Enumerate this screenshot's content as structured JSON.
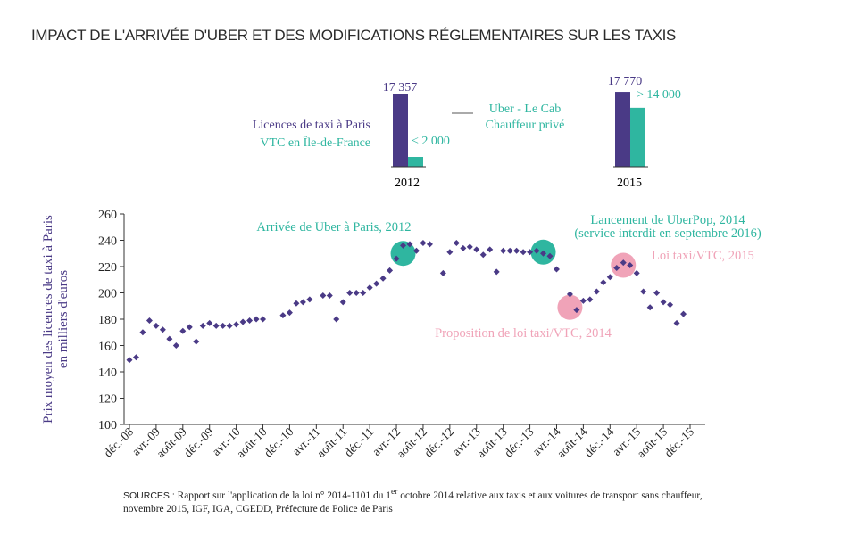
{
  "title": "IMPACT DE L'ARRIVÉE D'UBER ET DES MODIFICATIONS RÉGLEMENTAIRES SUR LES TAXIS",
  "colors": {
    "taxi": "#4a3a86",
    "vtc": "#2fb6a0",
    "law": "#f0a3b8",
    "axis": "#333333"
  },
  "inset": {
    "legend": {
      "taxi": "Licences de taxi à Paris",
      "vtc": "VTC en Île-de-France",
      "uber_line1": "Uber - Le Cab",
      "uber_line2": "Chauffeur privé"
    },
    "years": [
      {
        "year": "2012",
        "taxi": 17357,
        "vtc": 2000,
        "taxi_label": "17 357",
        "vtc_label": "< 2 000"
      },
      {
        "year": "2015",
        "taxi": 17770,
        "vtc": 14000,
        "taxi_label": "17 770",
        "vtc_label": "> 14 000"
      }
    ]
  },
  "chart_data": {
    "type": "scatter",
    "ylabel_line1": "Prix moyen des licences de taxi à Paris",
    "ylabel_line2": "en milliers d'euros",
    "ylim": [
      100,
      260
    ],
    "yticks": [
      100,
      120,
      140,
      160,
      180,
      200,
      220,
      240,
      260
    ],
    "xlim": [
      0,
      84
    ],
    "xticks": [
      {
        "i": 0,
        "label": "déc.-08"
      },
      {
        "i": 4,
        "label": "avr.-09"
      },
      {
        "i": 8,
        "label": "août-09"
      },
      {
        "i": 12,
        "label": "déc.-09"
      },
      {
        "i": 16,
        "label": "avr.-10"
      },
      {
        "i": 20,
        "label": "août-10"
      },
      {
        "i": 24,
        "label": "déc.-10"
      },
      {
        "i": 28,
        "label": "avr.-11"
      },
      {
        "i": 32,
        "label": "août-11"
      },
      {
        "i": 36,
        "label": "déc.-11"
      },
      {
        "i": 40,
        "label": "avr.-12"
      },
      {
        "i": 44,
        "label": "août-12"
      },
      {
        "i": 48,
        "label": "déc.-12"
      },
      {
        "i": 52,
        "label": "avr.-13"
      },
      {
        "i": 56,
        "label": "août-13"
      },
      {
        "i": 60,
        "label": "déc.-13"
      },
      {
        "i": 64,
        "label": "avr.-14"
      },
      {
        "i": 68,
        "label": "août-14"
      },
      {
        "i": 72,
        "label": "déc.-14"
      },
      {
        "i": 76,
        "label": "avr.-15"
      },
      {
        "i": 80,
        "label": "août-15"
      },
      {
        "i": 84,
        "label": "déc.-15"
      }
    ],
    "points": [
      [
        0,
        149
      ],
      [
        1,
        151
      ],
      [
        2,
        170
      ],
      [
        3,
        179
      ],
      [
        4,
        175
      ],
      [
        5,
        172
      ],
      [
        6,
        165
      ],
      [
        7,
        160
      ],
      [
        8,
        171
      ],
      [
        9,
        174
      ],
      [
        10,
        163
      ],
      [
        11,
        175
      ],
      [
        12,
        177
      ],
      [
        13,
        175
      ],
      [
        14,
        175
      ],
      [
        15,
        175
      ],
      [
        16,
        176
      ],
      [
        17,
        178
      ],
      [
        18,
        179
      ],
      [
        19,
        180
      ],
      [
        20,
        180
      ],
      [
        23,
        183
      ],
      [
        24,
        185
      ],
      [
        25,
        192
      ],
      [
        26,
        193
      ],
      [
        27,
        195
      ],
      [
        29,
        198
      ],
      [
        30,
        198
      ],
      [
        31,
        180
      ],
      [
        32,
        193
      ],
      [
        33,
        200
      ],
      [
        34,
        200
      ],
      [
        35,
        200
      ],
      [
        36,
        204
      ],
      [
        37,
        207
      ],
      [
        38,
        211
      ],
      [
        39,
        217
      ],
      [
        40,
        226
      ],
      [
        41,
        236
      ],
      [
        42,
        237
      ],
      [
        43,
        232
      ],
      [
        44,
        238
      ],
      [
        45,
        237
      ],
      [
        47,
        215
      ],
      [
        48,
        231
      ],
      [
        49,
        238
      ],
      [
        50,
        234
      ],
      [
        51,
        235
      ],
      [
        52,
        233
      ],
      [
        53,
        229
      ],
      [
        54,
        233
      ],
      [
        55,
        216
      ],
      [
        56,
        232
      ],
      [
        57,
        232
      ],
      [
        58,
        232
      ],
      [
        59,
        231
      ],
      [
        60,
        231
      ],
      [
        61,
        232
      ],
      [
        62,
        230
      ],
      [
        63,
        228
      ],
      [
        64,
        218
      ],
      [
        66,
        199
      ],
      [
        67,
        187
      ],
      [
        68,
        194
      ],
      [
        69,
        195
      ],
      [
        70,
        201
      ],
      [
        71,
        208
      ],
      [
        72,
        212
      ],
      [
        73,
        219
      ],
      [
        74,
        223
      ],
      [
        75,
        221
      ],
      [
        76,
        215
      ],
      [
        77,
        201
      ],
      [
        78,
        189
      ],
      [
        79,
        200
      ],
      [
        80,
        193
      ],
      [
        81,
        191
      ],
      [
        82,
        177
      ],
      [
        83,
        184
      ]
    ],
    "events": [
      {
        "i": 41,
        "value": 230,
        "kind": "uber",
        "label_lines": [
          "Arrivée de Uber à Paris, 2012"
        ]
      },
      {
        "i": 62,
        "value": 231,
        "kind": "uber",
        "label_lines": [
          "Lancement de UberPop, 2014",
          "(service interdit en septembre 2016)"
        ]
      },
      {
        "i": 66,
        "value": 189,
        "kind": "law",
        "label_lines": [
          "Proposition de loi taxi/VTC, 2014"
        ]
      },
      {
        "i": 74,
        "value": 221,
        "kind": "law",
        "label_lines": [
          "Loi taxi/VTC, 2015"
        ]
      }
    ]
  },
  "sources": {
    "label": "SOURCES :",
    "line1": " Rapport sur l'application de la loi n° 2014-1101 du 1",
    "sup": "er",
    "line1b": " octobre 2014 relative aux taxis et aux voitures de transport sans chauffeur,",
    "line2": "novembre 2015, IGF, IGA, CGEDD, Préfecture de Police de Paris"
  }
}
